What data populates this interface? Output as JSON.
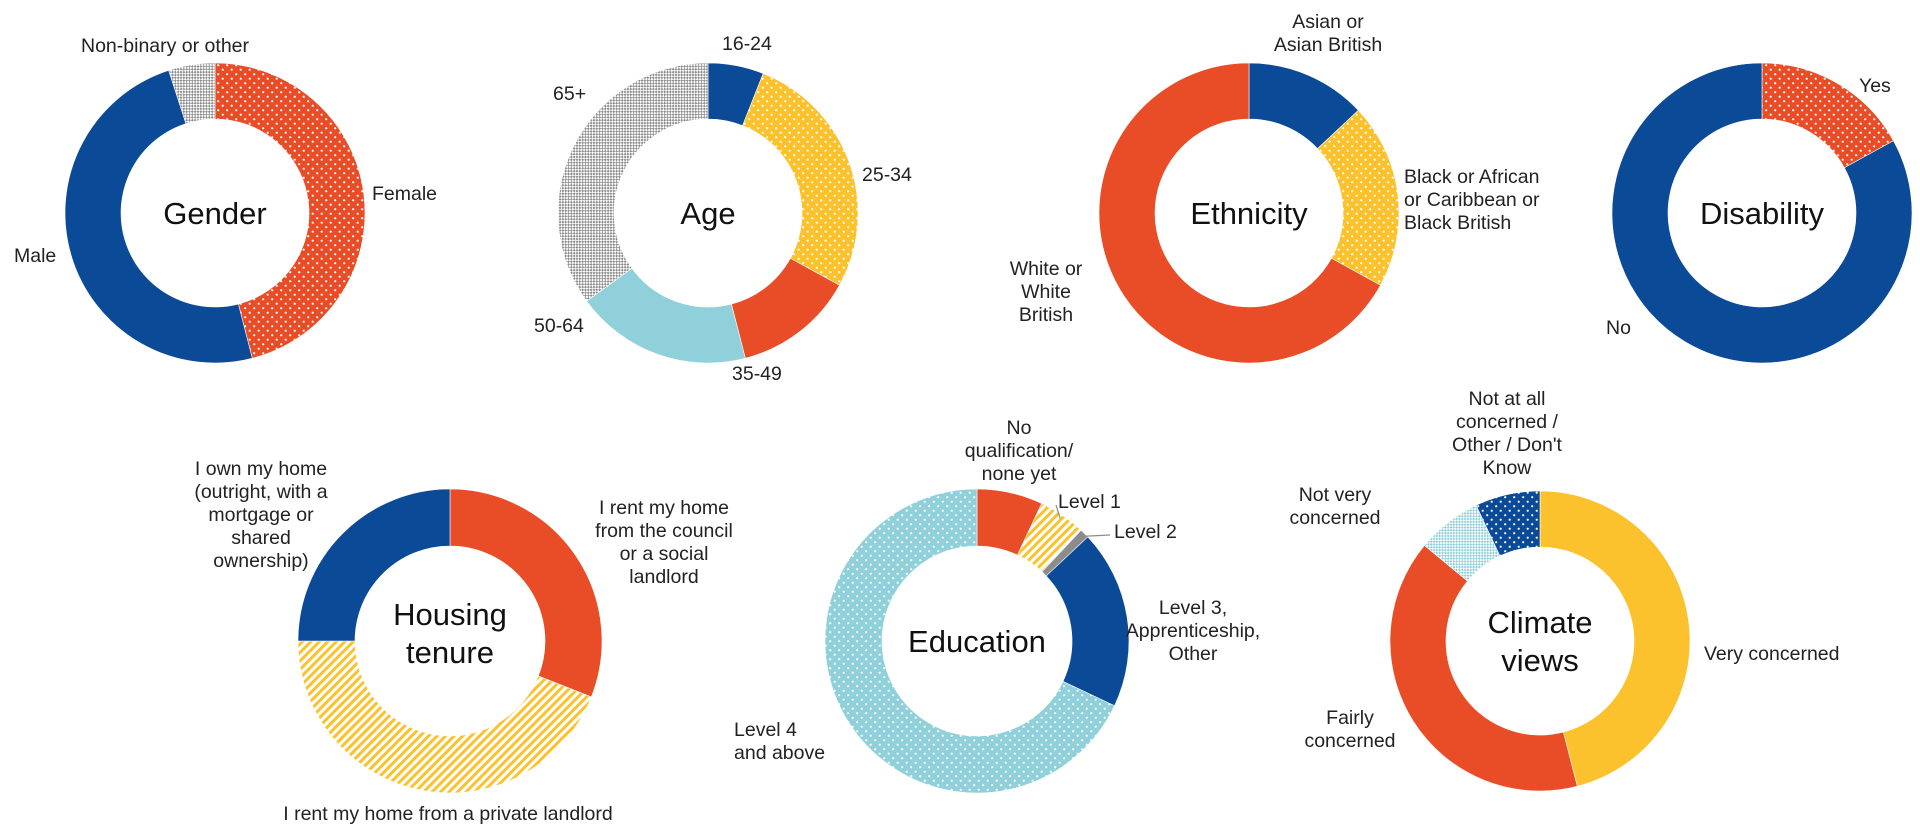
{
  "colors": {
    "blue": "#0a4a96",
    "orange": "#e84d27",
    "yellow": "#fbc22d",
    "teal": "#8fd0db",
    "gray": "#8c8c8c",
    "leader": "#8c8c8c"
  },
  "chart_data": [
    {
      "type": "donut",
      "title": "Gender",
      "slices": [
        {
          "label": "Female",
          "value": 46,
          "color": "orange",
          "pattern": "dots"
        },
        {
          "label": "Male",
          "value": 49,
          "color": "blue",
          "pattern": "solid"
        },
        {
          "label": "Non-binary or other",
          "value": 5,
          "color": "gray",
          "pattern": "check"
        }
      ]
    },
    {
      "type": "donut",
      "title": "Age",
      "slices": [
        {
          "label": "16-24",
          "value": 6,
          "color": "blue",
          "pattern": "solid"
        },
        {
          "label": "25-34",
          "value": 27,
          "color": "yellow",
          "pattern": "dots"
        },
        {
          "label": "35-49",
          "value": 13,
          "color": "orange",
          "pattern": "solid"
        },
        {
          "label": "50-64",
          "value": 19,
          "color": "teal",
          "pattern": "solid"
        },
        {
          "label": "65+",
          "value": 35,
          "color": "gray",
          "pattern": "check"
        }
      ]
    },
    {
      "type": "donut",
      "title": "Ethnicity",
      "slices": [
        {
          "label": "Asian or\nAsian British",
          "value": 13,
          "color": "blue",
          "pattern": "solid"
        },
        {
          "label": "Black or African\nor Caribbean or\nBlack British",
          "value": 20,
          "color": "yellow",
          "pattern": "dots"
        },
        {
          "label": "White or\nWhite\nBritish",
          "value": 67,
          "color": "orange",
          "pattern": "solid"
        }
      ]
    },
    {
      "type": "donut",
      "title": "Disability",
      "slices": [
        {
          "label": "Yes",
          "value": 17,
          "color": "orange",
          "pattern": "dots"
        },
        {
          "label": "No",
          "value": 83,
          "color": "blue",
          "pattern": "solid"
        }
      ]
    },
    {
      "type": "donut",
      "title": "Housing\ntenure",
      "slices": [
        {
          "label": "I rent my home\nfrom the council\nor a social\nlandlord",
          "value": 31,
          "color": "orange",
          "pattern": "solid"
        },
        {
          "label": "I rent my home from a private landlord",
          "value": 44,
          "color": "yellow",
          "pattern": "stripes"
        },
        {
          "label": "I own my home\n(outright, with a\nmortgage or\nshared\nownership)",
          "value": 25,
          "color": "blue",
          "pattern": "solid"
        }
      ]
    },
    {
      "type": "donut",
      "title": "Education",
      "slices": [
        {
          "label": "No\nqualification/\nnone yet",
          "value": 7,
          "color": "orange",
          "pattern": "solid"
        },
        {
          "label": "Level 1",
          "value": 5,
          "color": "yellow",
          "pattern": "stripes"
        },
        {
          "label": "Level 2",
          "value": 1,
          "color": "gray",
          "pattern": "solid"
        },
        {
          "label": "Level 3,\nApprenticeship,\nOther",
          "value": 19,
          "color": "blue",
          "pattern": "solid"
        },
        {
          "label": "Level 4\nand above",
          "value": 68,
          "color": "teal",
          "pattern": "dots"
        }
      ]
    },
    {
      "type": "donut",
      "title": "Climate\nviews",
      "slices": [
        {
          "label": "Very concerned",
          "value": 46,
          "color": "yellow",
          "pattern": "solid"
        },
        {
          "label": "Fairly\nconcerned",
          "value": 40,
          "color": "orange",
          "pattern": "solid"
        },
        {
          "label": "Not very\nconcerned",
          "value": 7,
          "color": "teal",
          "pattern": "check"
        },
        {
          "label": "Not at all\nconcerned /\nOther / Don't\nKnow",
          "value": 7,
          "color": "blue",
          "pattern": "dots"
        }
      ]
    }
  ]
}
